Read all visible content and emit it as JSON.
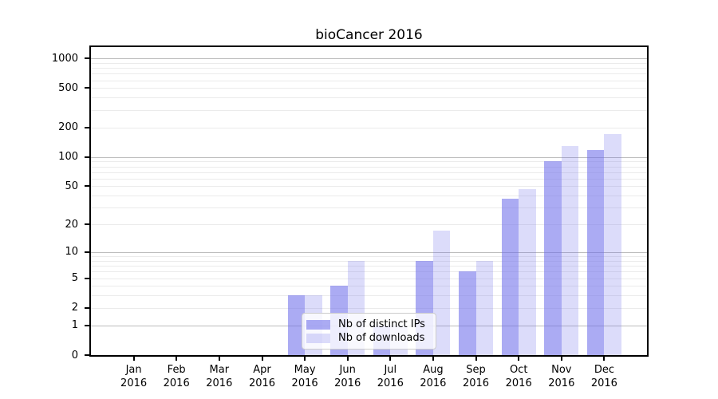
{
  "chart_data": {
    "type": "bar",
    "title": "bioCancer 2016",
    "categories": [
      "Jan",
      "Feb",
      "Mar",
      "Apr",
      "May",
      "Jun",
      "Jul",
      "Aug",
      "Sep",
      "Oct",
      "Nov",
      "Dec"
    ],
    "year_label": "2016",
    "series": [
      {
        "name": "Nb of distinct IPs",
        "color": "rgba(110,110,235,0.58)",
        "color_hex_approx": "#a9a9f3",
        "values": [
          0,
          0,
          0,
          0,
          3,
          4,
          1,
          8,
          6,
          37,
          90,
          117
        ]
      },
      {
        "name": "Nb of downloads",
        "color": "rgba(110,110,235,0.24)",
        "color_hex_approx": "#dcdcf9",
        "values": [
          0,
          0,
          0,
          0,
          3,
          8,
          1,
          17,
          8,
          47,
          130,
          170
        ]
      }
    ],
    "xlabel": "",
    "ylabel": "",
    "yscale": "log1p",
    "y_ticks": [
      0,
      1,
      2,
      5,
      10,
      20,
      50,
      100,
      200,
      500,
      1000
    ],
    "ylim": [
      0,
      1300
    ],
    "grid": true,
    "legend_position": "inside-bottom-center"
  }
}
